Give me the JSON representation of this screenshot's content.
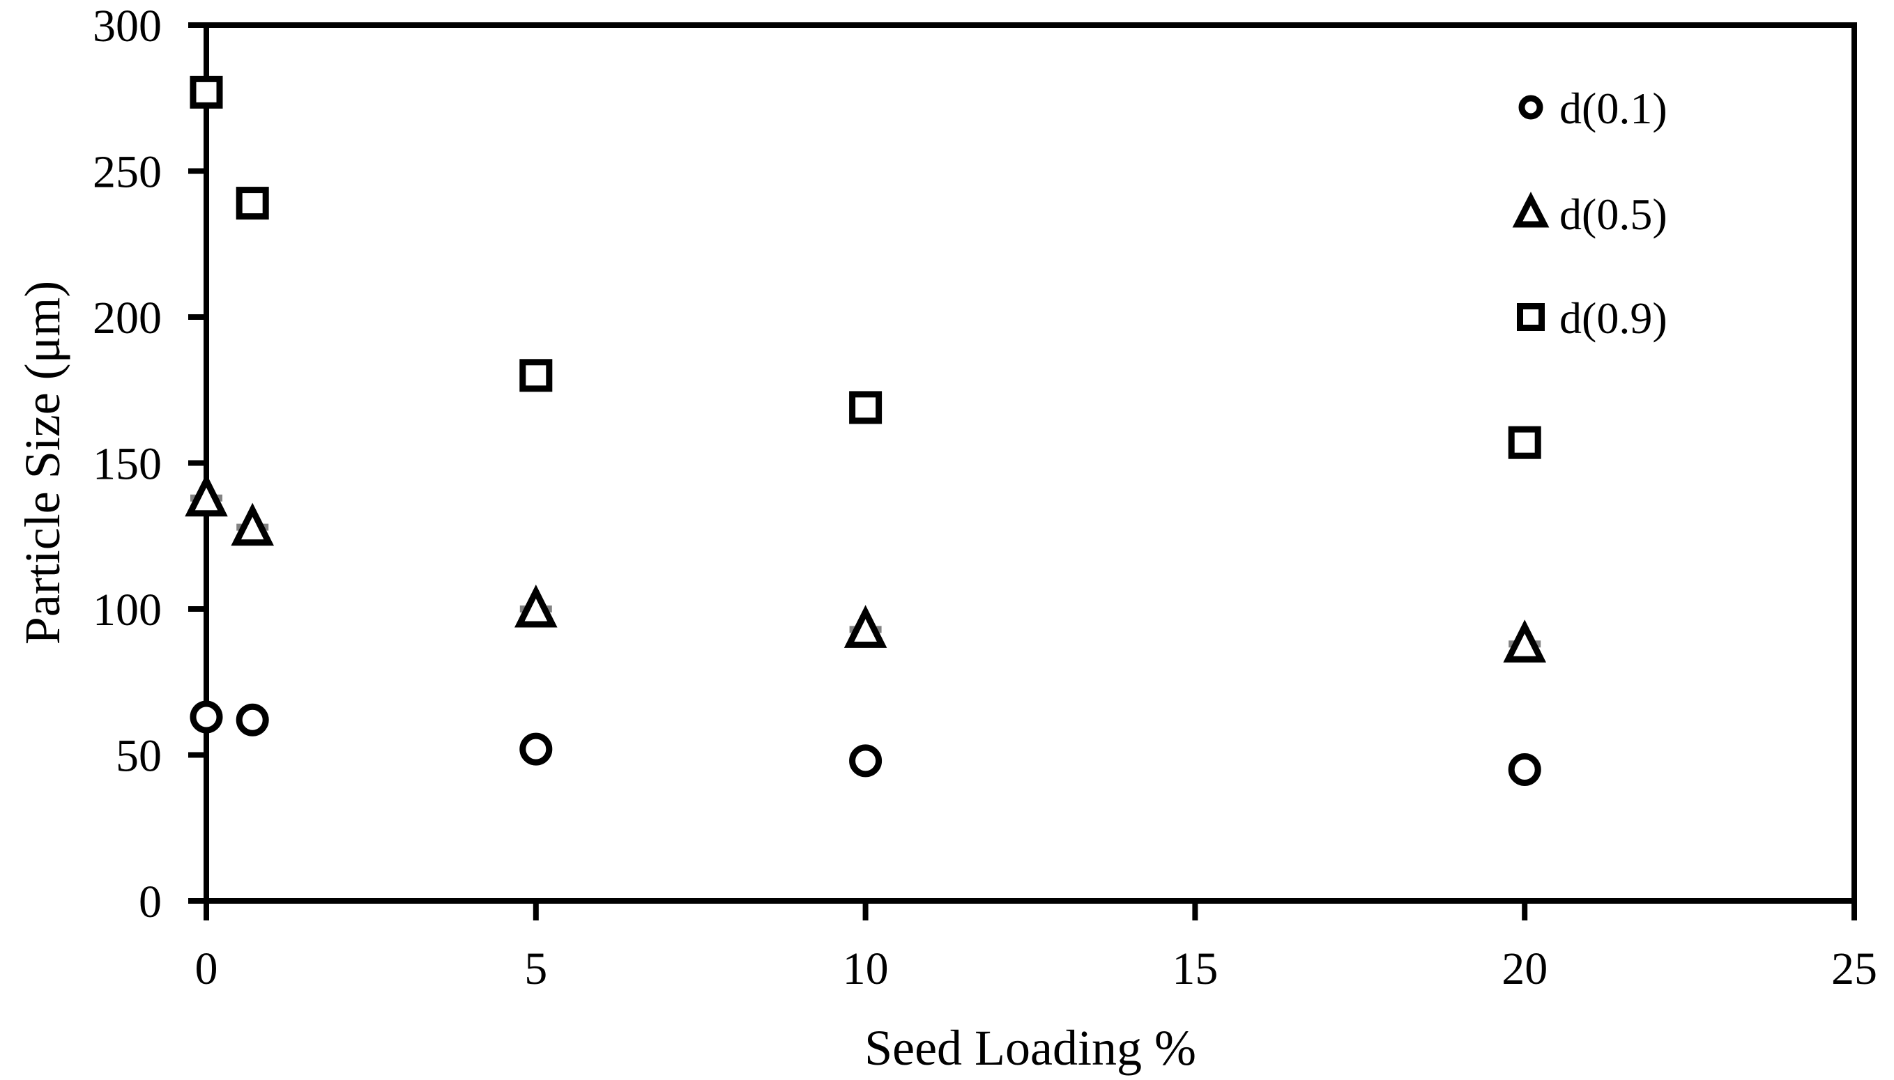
{
  "figure": {
    "background_color": "#ffffff",
    "axis_color": "#000000",
    "marker_fill_color": "#ffffff",
    "errorbar_color": "#828282"
  },
  "chart_data": {
    "type": "scatter",
    "title": "",
    "xlabel": "Seed Loading %",
    "ylabel": "Particle Size (μm)",
    "xlim": [
      0,
      25
    ],
    "ylim": [
      0,
      300
    ],
    "x_ticks": [
      0,
      5,
      10,
      15,
      20,
      25
    ],
    "x_tick_labels": [
      "0",
      "5",
      "10",
      "15",
      "20",
      "25"
    ],
    "y_ticks": [
      0,
      50,
      100,
      150,
      200,
      250,
      300
    ],
    "y_tick_labels": [
      "0",
      "50",
      "100",
      "150",
      "200",
      "250",
      "300"
    ],
    "grid": false,
    "frame": "full-box",
    "legend_position": "inside-top-right",
    "x": [
      0,
      0.7,
      5,
      10,
      20
    ],
    "series": [
      {
        "name": "d(0.1)",
        "marker": "circle",
        "values": [
          63,
          62,
          52,
          48,
          45
        ]
      },
      {
        "name": "d(0.5)",
        "marker": "triangle",
        "values": [
          138,
          128,
          100,
          93,
          88
        ],
        "has_gray_error_dash": true
      },
      {
        "name": "d(0.9)",
        "marker": "square",
        "values": [
          277,
          239,
          180,
          169,
          157
        ]
      }
    ]
  }
}
